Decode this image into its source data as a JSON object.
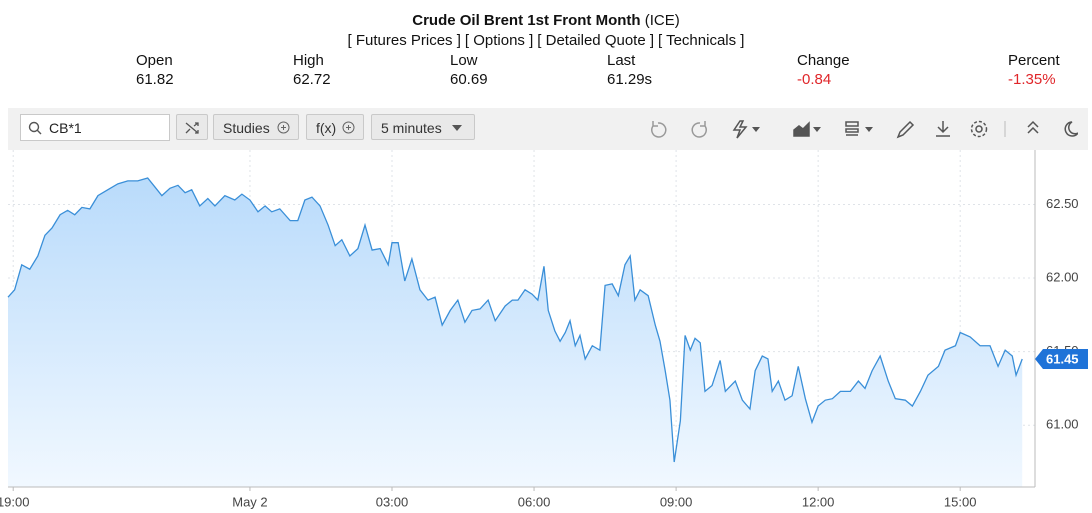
{
  "quote": {
    "title": "Crude Oil Brent 1st Front Month",
    "exchange": "(ICE)",
    "links": [
      "[ Futures Prices ]",
      "[ Options ]",
      "[ Detailed Quote ]",
      "[ Technicals ]"
    ],
    "stats": [
      {
        "label": "Open",
        "value": "61.82"
      },
      {
        "label": "High",
        "value": "62.72"
      },
      {
        "label": "Low",
        "value": "60.69"
      },
      {
        "label": "Last",
        "value": "61.29s"
      },
      {
        "label": "Change",
        "value": "-0.84",
        "color": "#e0262a"
      },
      {
        "label": "Percent",
        "value": "-1.35%",
        "color": "#e0262a"
      }
    ]
  },
  "toolbar": {
    "symbol": "CB*1",
    "studies": "Studies",
    "function": "f(x)",
    "interval": "5 minutes"
  },
  "chart_data": {
    "type": "area",
    "color": "#3a8fd8",
    "grid": true,
    "xlim": [
      -5.11,
      16.58
    ],
    "ylim": [
      60.58,
      62.87
    ],
    "xticks": [
      {
        "value": -5,
        "label": "19:00"
      },
      {
        "value": 0,
        "label": "May 2"
      },
      {
        "value": 3,
        "label": "03:00"
      },
      {
        "value": 6,
        "label": "06:00"
      },
      {
        "value": 9,
        "label": "09:00"
      },
      {
        "value": 12,
        "label": "12:00"
      },
      {
        "value": 15,
        "label": "15:00"
      }
    ],
    "yticks": [
      {
        "value": 61,
        "label": "61.00"
      },
      {
        "value": 61.5,
        "label": "61.50"
      },
      {
        "value": 62,
        "label": "62.00"
      },
      {
        "value": 62.5,
        "label": "62.50"
      }
    ],
    "x": [
      -5.11,
      -4.97,
      -4.82,
      -4.65,
      -4.48,
      -4.33,
      -4.18,
      -4.01,
      -3.85,
      -3.7,
      -3.55,
      -3.38,
      -3.21,
      -3.0,
      -2.79,
      -2.58,
      -2.37,
      -2.16,
      -2.01,
      -1.86,
      -1.69,
      -1.52,
      -1.37,
      -1.23,
      -1.06,
      -0.89,
      -0.74,
      -0.53,
      -0.32,
      -0.17,
      0,
      0.17,
      0.32,
      0.46,
      0.63,
      0.85,
      1.01,
      1.16,
      1.31,
      1.48,
      1.65,
      1.8,
      1.94,
      2.11,
      2.28,
      2.43,
      2.58,
      2.75,
      2.92,
      3.0,
      3.13,
      3.27,
      3.42,
      3.59,
      3.76,
      3.91,
      4.06,
      4.23,
      4.39,
      4.54,
      4.69,
      4.86,
      5.03,
      5.18,
      5.39,
      5.54,
      5.66,
      5.81,
      5.96,
      6.08,
      6.21,
      6.3,
      6.44,
      6.55,
      6.66,
      6.76,
      6.87,
      6.97,
      7.08,
      7.23,
      7.39,
      7.5,
      7.65,
      7.78,
      7.92,
      8.03,
      8.13,
      8.24,
      8.41,
      8.56,
      8.66,
      8.77,
      8.87,
      8.96,
      9.09,
      9.19,
      9.3,
      9.4,
      9.51,
      9.61,
      9.76,
      9.93,
      10.04,
      10.25,
      10.4,
      10.56,
      10.67,
      10.82,
      10.94,
      11.03,
      11.16,
      11.3,
      11.45,
      11.58,
      11.73,
      11.87,
      12.0,
      12.15,
      12.3,
      12.47,
      12.68,
      12.85,
      12.99,
      13.14,
      13.31,
      13.48,
      13.63,
      13.84,
      13.99,
      14.16,
      14.32,
      14.54,
      14.68,
      14.9,
      15.0,
      15.21,
      15.42,
      15.63,
      15.8,
      15.95,
      16.1,
      16.18,
      16.31
    ],
    "values": [
      61.87,
      61.92,
      62.09,
      62.06,
      62.15,
      62.29,
      62.34,
      62.43,
      62.46,
      62.43,
      62.48,
      62.47,
      62.56,
      62.6,
      62.64,
      62.66,
      62.66,
      62.68,
      62.62,
      62.56,
      62.61,
      62.63,
      62.58,
      62.6,
      62.49,
      62.54,
      62.49,
      62.56,
      62.53,
      62.57,
      62.53,
      62.45,
      62.49,
      62.45,
      62.47,
      62.39,
      62.39,
      62.53,
      62.55,
      62.49,
      62.36,
      62.22,
      62.26,
      62.15,
      62.2,
      62.36,
      62.19,
      62.2,
      62.09,
      62.24,
      62.24,
      61.98,
      62.13,
      61.92,
      61.85,
      61.87,
      61.68,
      61.78,
      61.85,
      61.7,
      61.78,
      61.79,
      61.85,
      61.71,
      61.81,
      61.85,
      61.85,
      61.92,
      61.89,
      61.85,
      62.08,
      61.78,
      61.64,
      61.57,
      61.63,
      61.71,
      61.54,
      61.61,
      61.45,
      61.54,
      61.51,
      61.95,
      61.96,
      61.88,
      62.09,
      62.15,
      61.85,
      61.92,
      61.88,
      61.68,
      61.57,
      61.37,
      61.17,
      60.75,
      61.03,
      61.61,
      61.51,
      61.59,
      61.56,
      61.23,
      61.27,
      61.44,
      61.23,
      61.3,
      61.17,
      61.11,
      61.37,
      61.47,
      61.45,
      61.23,
      61.3,
      61.17,
      61.2,
      61.4,
      61.18,
      61.02,
      61.13,
      61.17,
      61.18,
      61.23,
      61.23,
      61.3,
      61.25,
      61.37,
      61.47,
      61.3,
      61.18,
      61.17,
      61.13,
      61.23,
      61.34,
      61.4,
      61.51,
      61.54,
      61.63,
      61.6,
      61.54,
      61.54,
      61.4,
      61.51,
      61.47,
      61.34,
      61.45
    ]
  }
}
